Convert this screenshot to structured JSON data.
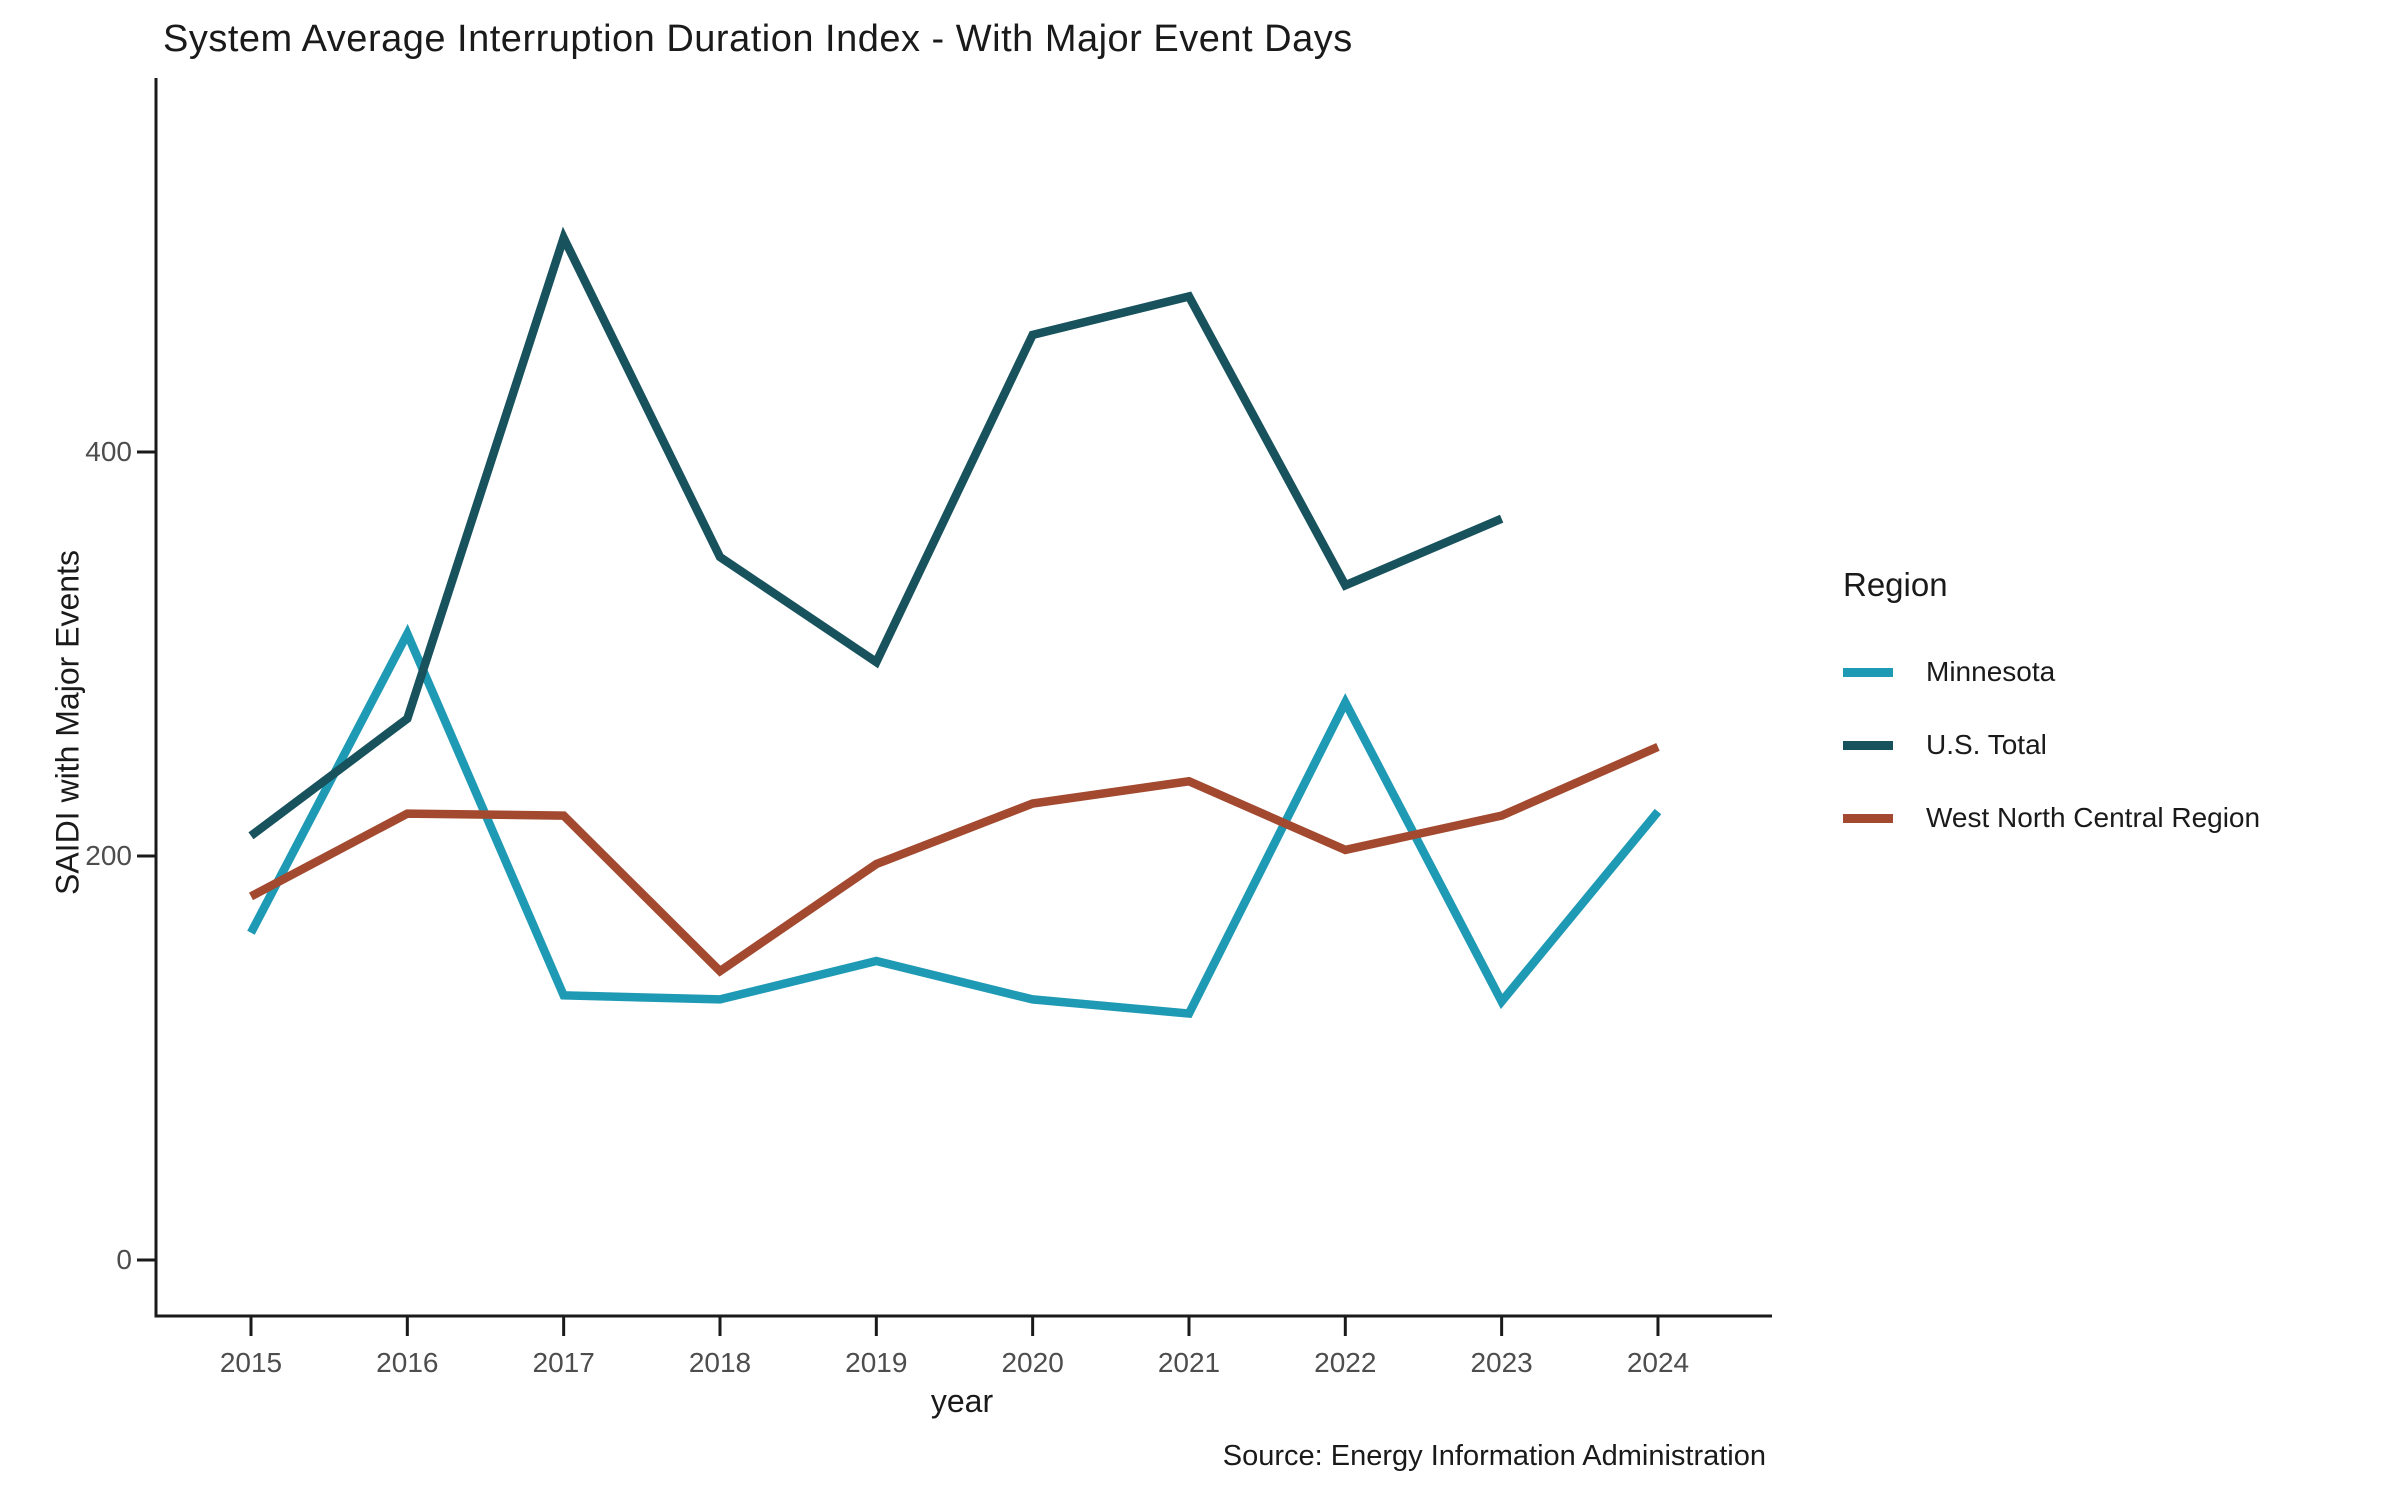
{
  "title": "System Average Interruption Duration Index - With Major Event Days",
  "legend": {
    "title": "Region",
    "position": "right"
  },
  "axes": {
    "x_label": "year",
    "y_label": "SAIDI with Major Events",
    "x_tick_labels": [
      "2015",
      "2016",
      "2017",
      "2018",
      "2019",
      "2020",
      "2021",
      "2022",
      "2023",
      "2024"
    ],
    "y_tick_labels": [
      "0",
      "200",
      "400"
    ]
  },
  "colors": {
    "minnesota": "#1f9ab5",
    "us_total": "#17525d",
    "west_north_central": "#a3492f",
    "axis_line": "#1a1a1a",
    "tick_text": "#4d4d4d",
    "background": "#ffffff"
  },
  "caption": "Source: Energy Information Administration",
  "chart_data": {
    "type": "line",
    "title": "System Average Interruption Duration Index - With Major Event Days",
    "xlabel": "year",
    "ylabel": "SAIDI with Major Events",
    "x": [
      2015,
      2016,
      2017,
      2018,
      2019,
      2020,
      2021,
      2022,
      2023,
      2024
    ],
    "y_ticks": [
      0,
      200,
      400
    ],
    "ylim": [
      -27,
      585
    ],
    "grid": false,
    "legend_position": "right",
    "source": "Source: Energy Information Administration",
    "series": [
      {
        "name": "Minnesota",
        "color": "#1f9ab5",
        "values": [
          162,
          310,
          131,
          129,
          148,
          129,
          122,
          276,
          128,
          222
        ]
      },
      {
        "name": "U.S. Total",
        "color": "#17525d",
        "values": [
          210,
          268,
          506,
          348,
          296,
          458,
          477,
          334,
          367,
          null
        ]
      },
      {
        "name": "West North Central Region",
        "color": "#a3492f",
        "values": [
          180,
          221,
          220,
          143,
          196,
          226,
          237,
          203,
          220,
          254
        ]
      }
    ]
  }
}
